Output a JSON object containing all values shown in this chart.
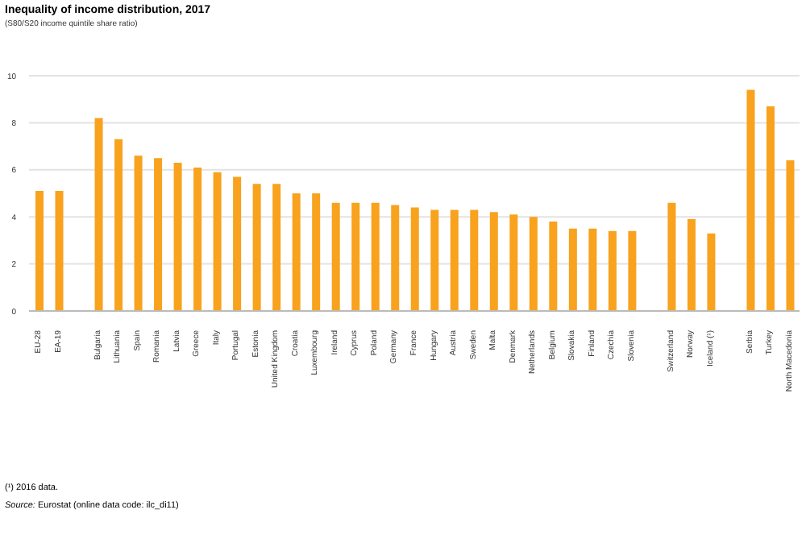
{
  "chart_data": {
    "type": "bar",
    "title": "Inequality of income distribution, 2017",
    "subtitle": "(S80/S20 income quintile share ratio)",
    "categories": [
      "EU-28",
      "EA-19",
      null,
      "Bulgaria",
      "Lithuania",
      "Spain",
      "Romania",
      "Latvia",
      "Greece",
      "Italy",
      "Portugal",
      "Estonia",
      "United Kingdom",
      "Croatia",
      "Luxembourg",
      "Ireland",
      "Cyprus",
      "Poland",
      "Germany",
      "France",
      "Hungary",
      "Austria",
      "Sweden",
      "Malta",
      "Denmark",
      "Netherlands",
      "Belgium",
      "Slovakia",
      "Finland",
      "Czechia",
      "Slovenia",
      null,
      "Switzerland",
      "Norway",
      "Iceland (¹)",
      null,
      "Serbia",
      "Turkey",
      "North Macedonia"
    ],
    "values": [
      5.1,
      5.1,
      null,
      8.2,
      7.3,
      6.6,
      6.5,
      6.3,
      6.1,
      5.9,
      5.7,
      5.4,
      5.4,
      5.0,
      5.0,
      4.6,
      4.6,
      4.6,
      4.5,
      4.4,
      4.3,
      4.3,
      4.3,
      4.2,
      4.1,
      4.0,
      3.8,
      3.5,
      3.5,
      3.4,
      3.4,
      null,
      4.6,
      3.9,
      3.3,
      null,
      9.4,
      8.7,
      6.4
    ],
    "color": "#f8a21d",
    "ylim": [
      0,
      10
    ],
    "yticks": [
      0,
      2,
      4,
      6,
      8,
      10
    ],
    "grid": "y",
    "annotations": [
      "(¹) 2016 data.",
      "Source: Eurostat (online data code: ilc_di11)"
    ]
  }
}
